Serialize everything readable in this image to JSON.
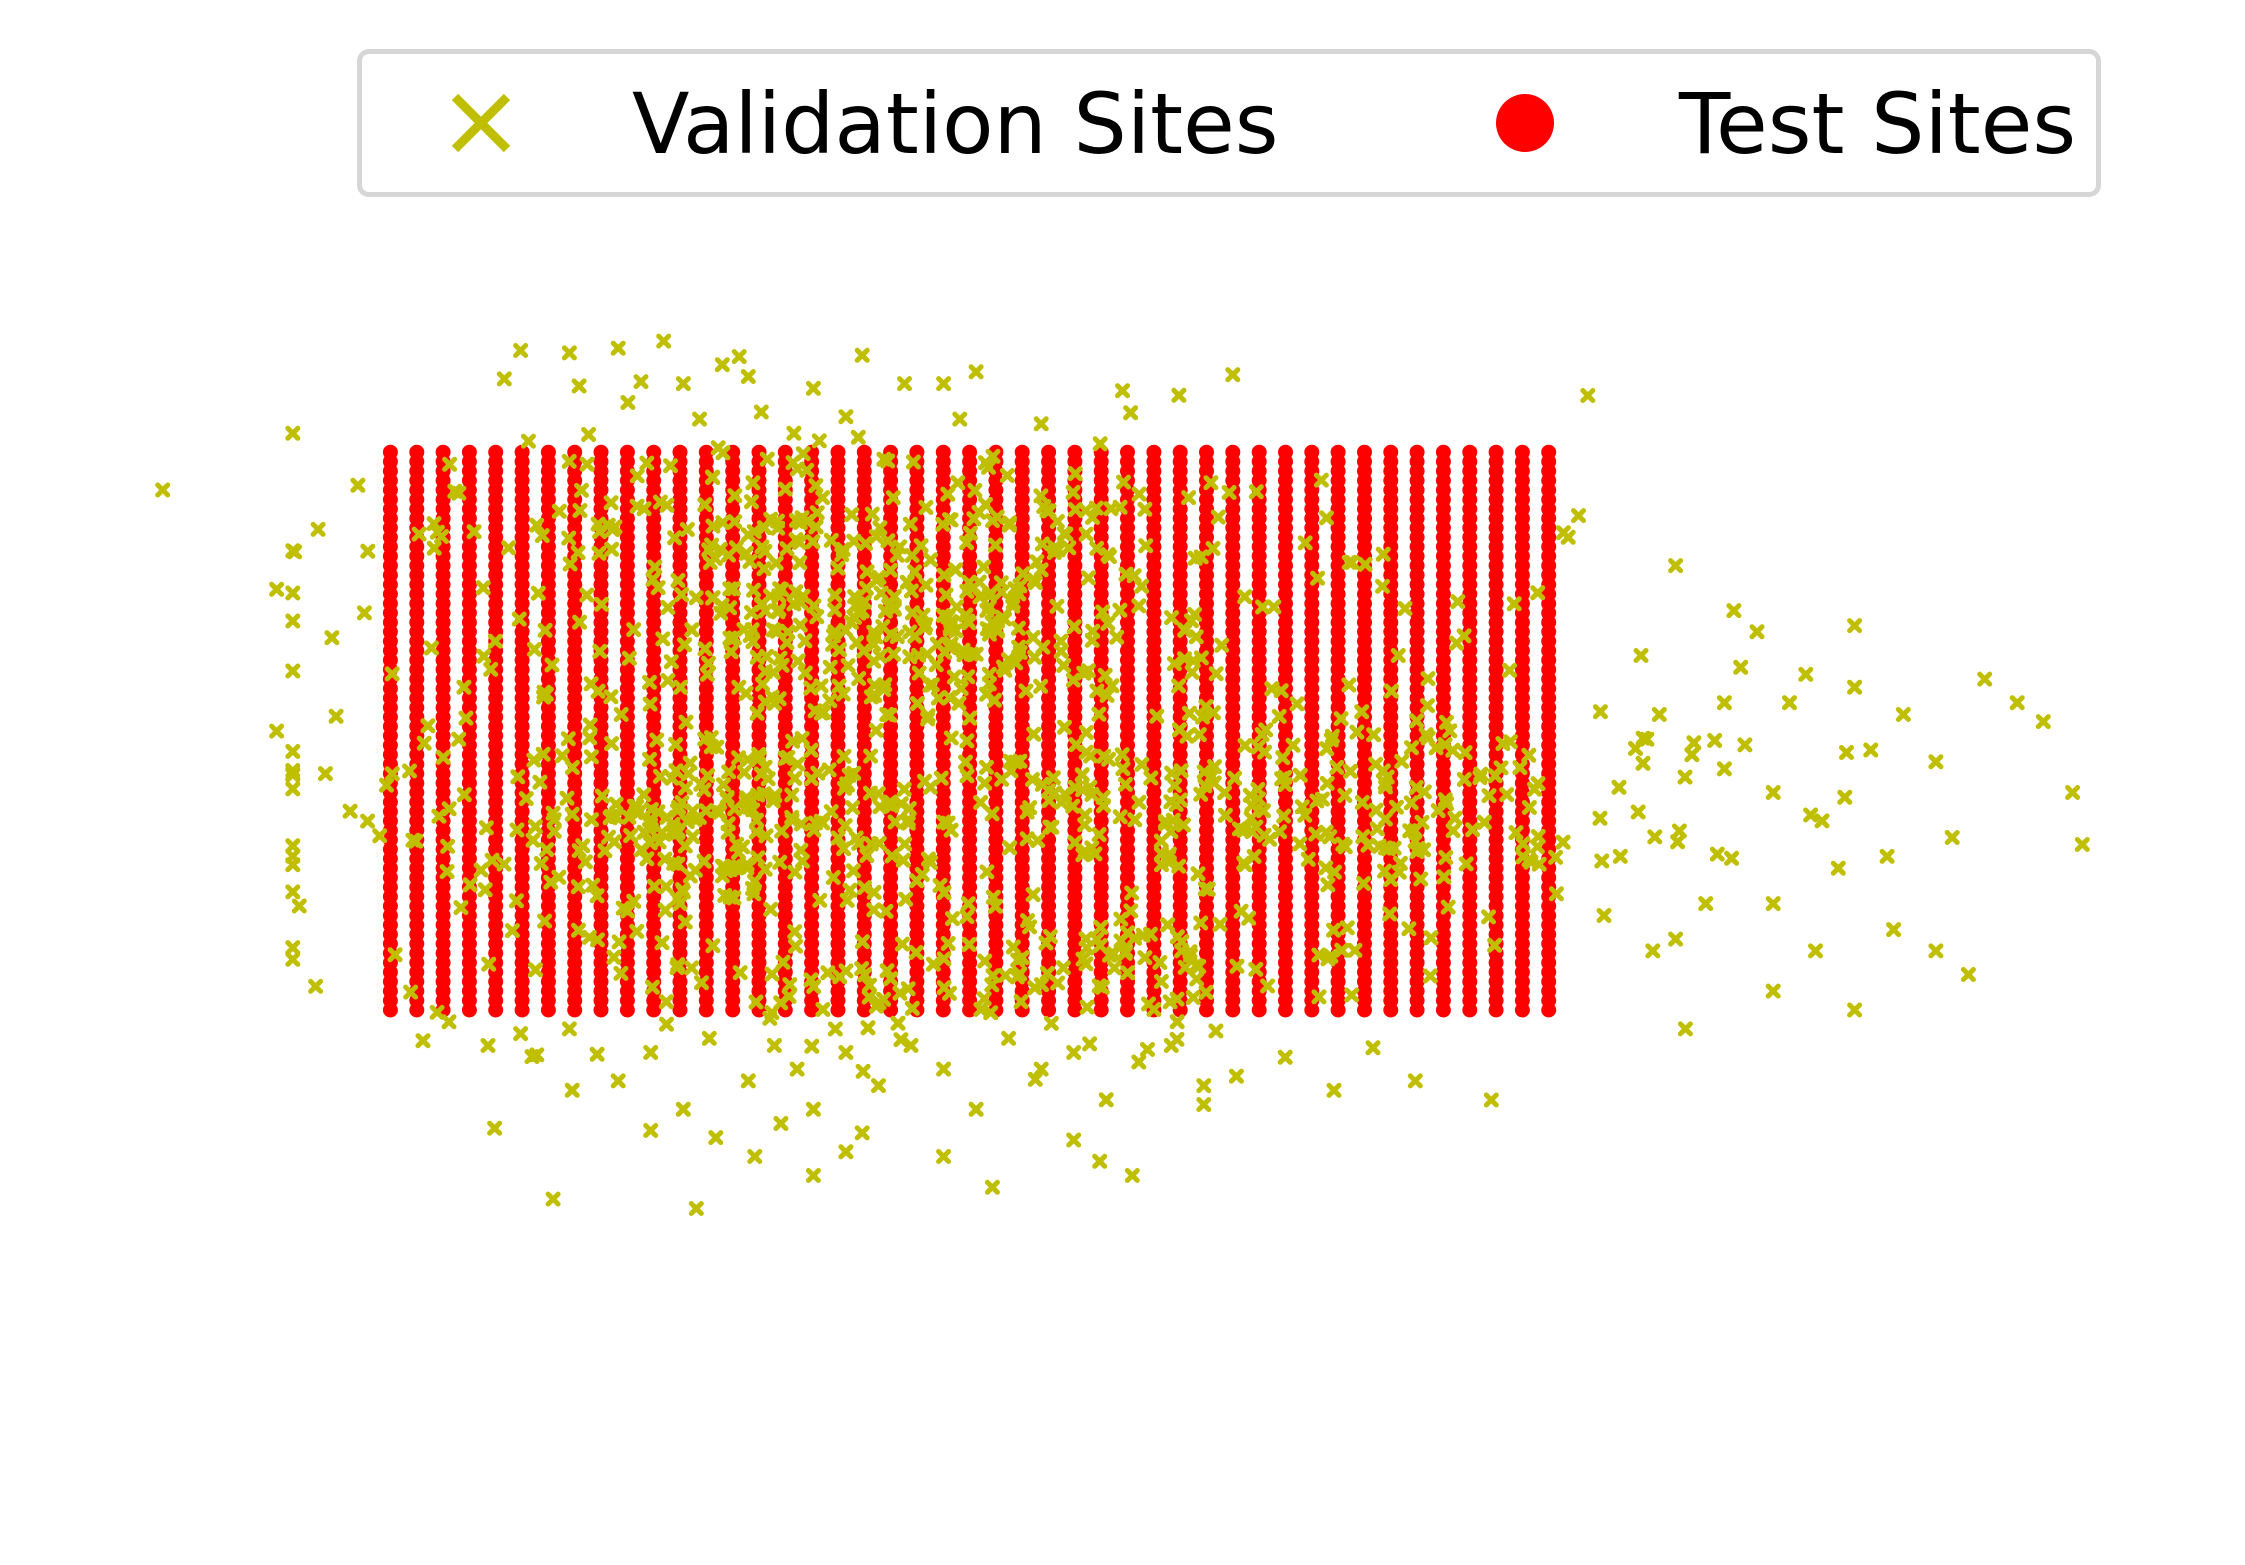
{
  "colors": {
    "validation": "#bfbf00",
    "test": "#ff0000",
    "legend_border": "#d6d6d6"
  },
  "legend": {
    "validation_label": "Validation Sites",
    "validation_icon": "x-marker-icon",
    "test_label": "Test Sites",
    "test_icon": "circle-marker-icon",
    "placement": "top"
  },
  "chart_data": {
    "type": "scatter",
    "grid": false,
    "axes_visible": false,
    "xlim": [
      -3.2,
      3.7
    ],
    "ylim": [
      -3.0,
      2.5
    ],
    "series": [
      {
        "name": "Test Sites",
        "marker": "circle",
        "grid_x": {
          "start": -2.0,
          "stop": 1.56,
          "count": 45
        },
        "grid_y": {
          "start": 1.56,
          "stop": -0.8,
          "count": 60
        }
      },
      {
        "name": "Validation Sites",
        "marker": "x",
        "points": [
          [
            -2.7,
            1.4
          ],
          [
            -2.1,
            1.42
          ],
          [
            -2.35,
            0.98
          ],
          [
            -2.08,
            0.88
          ],
          [
            -2.35,
            0.38
          ],
          [
            -2.3,
            0.2
          ],
          [
            -2.2,
            0.2
          ],
          [
            -2.28,
            -0.36
          ],
          [
            -2.23,
            -0.7
          ],
          [
            -1.6,
            1.99
          ],
          [
            -1.45,
            1.98
          ],
          [
            -1.3,
            2.0
          ],
          [
            -1.16,
            2.03
          ],
          [
            -1.65,
            1.87
          ],
          [
            -1.42,
            1.84
          ],
          [
            -1.27,
            1.77
          ],
          [
            -1.1,
            1.85
          ],
          [
            -0.98,
            1.93
          ],
          [
            -0.9,
            1.88
          ],
          [
            -0.86,
            1.73
          ],
          [
            -0.7,
            1.83
          ],
          [
            -0.55,
            1.97
          ],
          [
            -0.42,
            1.85
          ],
          [
            -0.3,
            1.85
          ],
          [
            -0.2,
            1.9
          ],
          [
            -0.25,
            1.7
          ],
          [
            -0.6,
            1.71
          ],
          [
            -0.76,
            1.64
          ],
          [
            -1.05,
            1.7
          ],
          [
            0.0,
            1.68
          ],
          [
            0.25,
            1.82
          ],
          [
            1.68,
            1.8
          ],
          [
            1.62,
            1.2
          ],
          [
            1.95,
            1.08
          ],
          [
            2.15,
            0.65
          ],
          [
            2.2,
            0.8
          ],
          [
            2.35,
            0.62
          ],
          [
            2.3,
            0.5
          ],
          [
            2.1,
            0.5
          ],
          [
            1.9,
            0.45
          ],
          [
            2.07,
            0.34
          ],
          [
            2.0,
            0.28
          ],
          [
            1.85,
            0.35
          ],
          [
            2.1,
            0.22
          ],
          [
            2.25,
            0.12
          ],
          [
            2.4,
            0.0
          ],
          [
            2.47,
            0.1
          ],
          [
            2.55,
            0.3
          ],
          [
            2.65,
            0.45
          ],
          [
            2.75,
            0.25
          ],
          [
            2.9,
            0.6
          ],
          [
            3.0,
            0.5
          ],
          [
            3.08,
            0.42
          ],
          [
            3.2,
            -0.1
          ],
          [
            3.17,
            0.12
          ],
          [
            2.8,
            -0.07
          ],
          [
            2.6,
            -0.15
          ],
          [
            2.45,
            -0.2
          ],
          [
            2.25,
            -0.35
          ],
          [
            1.95,
            -0.5
          ],
          [
            1.78,
            -0.15
          ],
          [
            1.88,
            -0.55
          ],
          [
            1.73,
            -0.4
          ],
          [
            2.25,
            -0.72
          ],
          [
            2.5,
            -0.8
          ],
          [
            2.38,
            -0.55
          ],
          [
            2.62,
            -0.46
          ],
          [
            2.75,
            -0.55
          ],
          [
            2.85,
            -0.65
          ],
          [
            -1.9,
            -0.93
          ],
          [
            -1.82,
            -0.85
          ],
          [
            -1.7,
            -0.95
          ],
          [
            -1.6,
            -0.9
          ],
          [
            -1.55,
            -0.99
          ],
          [
            -1.45,
            -0.88
          ],
          [
            -1.3,
            -1.1
          ],
          [
            -1.2,
            -0.98
          ],
          [
            -1.1,
            -1.22
          ],
          [
            -1.02,
            -0.92
          ],
          [
            -0.9,
            -1.1
          ],
          [
            -0.82,
            -0.95
          ],
          [
            -0.75,
            -1.05
          ],
          [
            -0.7,
            -1.22
          ],
          [
            -0.6,
            -0.98
          ],
          [
            -0.5,
            -1.12
          ],
          [
            -0.4,
            -0.95
          ],
          [
            -0.3,
            -1.05
          ],
          [
            -0.2,
            -1.22
          ],
          [
            -0.1,
            -0.92
          ],
          [
            0.0,
            -1.05
          ],
          [
            0.1,
            -0.98
          ],
          [
            0.2,
            -1.18
          ],
          [
            0.3,
            -1.02
          ],
          [
            0.4,
            -0.95
          ],
          [
            0.5,
            -1.12
          ],
          [
            0.6,
            -1.08
          ],
          [
            0.75,
            -1.0
          ],
          [
            0.9,
            -1.14
          ],
          [
            1.02,
            -0.96
          ],
          [
            1.15,
            -1.1
          ],
          [
            1.98,
            -0.88
          ],
          [
            -1.68,
            -1.3
          ],
          [
            -1.2,
            -1.31
          ],
          [
            -1.5,
            -1.6
          ],
          [
            -1.0,
            -1.34
          ],
          [
            -0.7,
            -1.5
          ],
          [
            -0.55,
            -1.32
          ],
          [
            -0.3,
            -1.42
          ],
          [
            -0.15,
            -1.55
          ],
          [
            0.1,
            -1.35
          ],
          [
            0.18,
            -1.44
          ],
          [
            0.28,
            -1.5
          ],
          [
            -0.88,
            -1.42
          ],
          [
            -0.8,
            -1.28
          ],
          [
            -0.6,
            -1.4
          ],
          [
            0.5,
            -1.2
          ],
          [
            -1.06,
            -1.64
          ]
        ],
        "clusters": [
          {
            "cx": -0.42,
            "cy": 0.88,
            "sx": 0.5,
            "sy": 0.22,
            "n": 220
          },
          {
            "cx": -1.05,
            "cy": -0.05,
            "sx": 0.45,
            "sy": 0.2,
            "n": 180
          },
          {
            "cx": 0.85,
            "cy": 0.05,
            "sx": 0.55,
            "sy": 0.25,
            "n": 150
          },
          {
            "cx": -0.25,
            "cy": 0.3,
            "sx": 1.05,
            "sy": 0.55,
            "n": 420
          },
          {
            "cx": -0.75,
            "cy": 1.3,
            "sx": 0.6,
            "sy": 0.14,
            "n": 120
          },
          {
            "cx": -0.2,
            "cy": -0.65,
            "sx": 0.55,
            "sy": 0.14,
            "n": 110
          }
        ]
      }
    ]
  }
}
